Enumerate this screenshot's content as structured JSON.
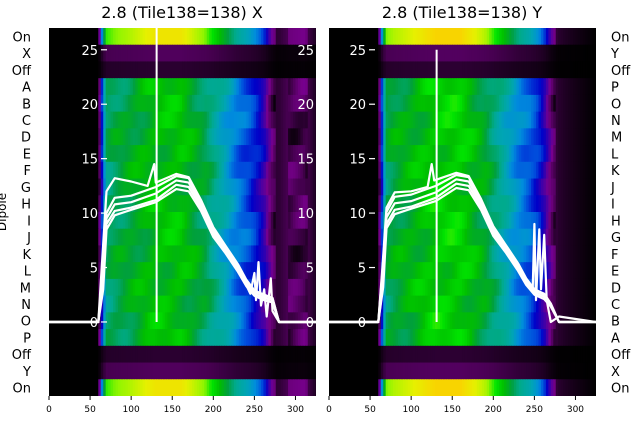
{
  "chart_data": [
    {
      "type": "heatmap",
      "title": "2.8 (Tile138=138) X",
      "ylabel": "Dipole",
      "dipole_rows": [
        "On",
        "X",
        "Off",
        "A",
        "B",
        "C",
        "D",
        "E",
        "F",
        "G",
        "H",
        "I",
        "J",
        "K",
        "L",
        "M",
        "N",
        "O",
        "P",
        "Off",
        "Y",
        "On"
      ],
      "x_ticks": [
        0,
        50,
        100,
        150,
        200,
        250,
        300
      ],
      "xlim": [
        0,
        325
      ],
      "overlay_y_ticks": [
        0,
        5,
        10,
        15,
        20,
        25
      ],
      "overlay_ylim": [
        -6.8,
        27
      ],
      "colormap": "nipy_spectral",
      "background_color": "#1a0018",
      "spectrum_profile": [
        [
          0,
          0
        ],
        [
          60,
          0
        ],
        [
          66,
          0.28
        ],
        [
          70,
          0.42
        ],
        [
          80,
          0.44
        ],
        [
          100,
          0.46
        ],
        [
          130,
          0.5
        ],
        [
          160,
          0.5
        ],
        [
          190,
          0.44
        ],
        [
          210,
          0.36
        ],
        [
          230,
          0.28
        ],
        [
          245,
          0.24
        ],
        [
          250,
          0.22
        ],
        [
          255,
          0.2
        ],
        [
          262,
          0.16
        ],
        [
          270,
          0.08
        ],
        [
          278,
          0.03
        ],
        [
          290,
          0.05
        ],
        [
          310,
          0.06
        ],
        [
          325,
          0.02
        ]
      ],
      "overlay_series": [
        {
          "points": [
            [
              0,
              0
            ],
            [
              60,
              0
            ],
            [
              65,
              3
            ],
            [
              70,
              9
            ],
            [
              80,
              10.2
            ],
            [
              100,
              10.5
            ],
            [
              130,
              11.2
            ],
            [
              155,
              12.6
            ],
            [
              170,
              12.4
            ],
            [
              185,
              10.5
            ],
            [
              200,
              8
            ],
            [
              215,
              6.5
            ],
            [
              230,
              4.8
            ],
            [
              240,
              3.4
            ],
            [
              245,
              2.6
            ],
            [
              250,
              4.5
            ],
            [
              252,
              2
            ],
            [
              255,
              5.5
            ],
            [
              258,
              1.5
            ],
            [
              262,
              3
            ],
            [
              265,
              0.5
            ],
            [
              270,
              4
            ],
            [
              272,
              1
            ],
            [
              280,
              0
            ],
            [
              325,
              0
            ]
          ]
        },
        {
          "points": [
            [
              0,
              0
            ],
            [
              60,
              0
            ],
            [
              65,
              4
            ],
            [
              70,
              9.5
            ],
            [
              80,
              10.8
            ],
            [
              100,
              11
            ],
            [
              130,
              11.8
            ],
            [
              155,
              13
            ],
            [
              170,
              12.8
            ],
            [
              185,
              10.8
            ],
            [
              200,
              8.3
            ],
            [
              215,
              6.7
            ],
            [
              230,
              5
            ],
            [
              240,
              3.6
            ],
            [
              250,
              2.6
            ],
            [
              262,
              2.2
            ],
            [
              272,
              2
            ],
            [
              280,
              0
            ],
            [
              325,
              0
            ]
          ]
        },
        {
          "points": [
            [
              0,
              0
            ],
            [
              60,
              0
            ],
            [
              65,
              4.5
            ],
            [
              70,
              10
            ],
            [
              80,
              11.4
            ],
            [
              100,
              11.6
            ],
            [
              130,
              12.4
            ],
            [
              155,
              13.4
            ],
            [
              170,
              13.2
            ],
            [
              185,
              11.1
            ],
            [
              200,
              8.6
            ],
            [
              215,
              6.9
            ],
            [
              230,
              5.2
            ],
            [
              240,
              3.8
            ],
            [
              250,
              2.8
            ],
            [
              262,
              2.4
            ],
            [
              272,
              2.2
            ],
            [
              280,
              0
            ],
            [
              325,
              0
            ]
          ]
        },
        {
          "points": [
            [
              0,
              0
            ],
            [
              60,
              0
            ],
            [
              65,
              6
            ],
            [
              70,
              12
            ],
            [
              80,
              13.2
            ],
            [
              100,
              12.9
            ],
            [
              120,
              12.5
            ],
            [
              128,
              14.5
            ],
            [
              130,
              12.8
            ],
            [
              155,
              13.6
            ],
            [
              170,
              13.3
            ],
            [
              185,
              11.2
            ],
            [
              200,
              8.7
            ],
            [
              215,
              7
            ],
            [
              230,
              5.3
            ],
            [
              240,
              3.9
            ],
            [
              250,
              2.9
            ],
            [
              262,
              2.5
            ],
            [
              272,
              2.2
            ],
            [
              280,
              0
            ],
            [
              325,
              0
            ]
          ]
        },
        {
          "points": [
            [
              0,
              0
            ],
            [
              60,
              0
            ],
            [
              66,
              3
            ],
            [
              70,
              8.5
            ],
            [
              80,
              9.8
            ],
            [
              100,
              10.3
            ],
            [
              130,
              11
            ],
            [
              155,
              12.2
            ],
            [
              170,
              12
            ],
            [
              185,
              10.2
            ],
            [
              200,
              7.8
            ],
            [
              215,
              6.3
            ],
            [
              230,
              4.6
            ],
            [
              240,
              3.3
            ],
            [
              250,
              2.4
            ],
            [
              262,
              2
            ],
            [
              272,
              1.8
            ],
            [
              280,
              0
            ],
            [
              325,
              0
            ]
          ]
        }
      ],
      "spike": {
        "x": 131,
        "y_top": 27
      }
    },
    {
      "type": "heatmap",
      "title": "2.8 (Tile138=138) Y",
      "dipole_rows": [
        "On",
        "Y",
        "Off",
        "P",
        "O",
        "N",
        "M",
        "L",
        "K",
        "J",
        "I",
        "H",
        "G",
        "F",
        "E",
        "D",
        "C",
        "B",
        "A",
        "Off",
        "X",
        "On"
      ],
      "x_ticks": [
        0,
        50,
        100,
        150,
        200,
        250,
        300
      ],
      "xlim": [
        0,
        325
      ],
      "overlay_y_ticks": [
        0,
        5,
        10,
        15,
        20,
        25
      ],
      "overlay_ylim": [
        -6.8,
        27
      ],
      "colormap": "nipy_spectral",
      "background_color": "#000000",
      "spectrum_profile": [
        [
          0,
          0
        ],
        [
          60,
          0
        ],
        [
          66,
          0.3
        ],
        [
          70,
          0.44
        ],
        [
          80,
          0.46
        ],
        [
          100,
          0.48
        ],
        [
          130,
          0.52
        ],
        [
          160,
          0.52
        ],
        [
          190,
          0.46
        ],
        [
          210,
          0.38
        ],
        [
          230,
          0.3
        ],
        [
          245,
          0.26
        ],
        [
          250,
          0.24
        ],
        [
          255,
          0.22
        ],
        [
          262,
          0.17
        ],
        [
          270,
          0.09
        ],
        [
          278,
          0.03
        ],
        [
          290,
          0.02
        ],
        [
          325,
          0
        ]
      ],
      "overlay_series": [
        {
          "points": [
            [
              0,
              0
            ],
            [
              60,
              0
            ],
            [
              65,
              3
            ],
            [
              70,
              9
            ],
            [
              80,
              10.3
            ],
            [
              100,
              10.6
            ],
            [
              130,
              11.4
            ],
            [
              155,
              12.7
            ],
            [
              170,
              12.5
            ],
            [
              185,
              10.6
            ],
            [
              200,
              8.1
            ],
            [
              215,
              6.6
            ],
            [
              230,
              4.9
            ],
            [
              240,
              3.5
            ],
            [
              248,
              3
            ],
            [
              250,
              9
            ],
            [
              252,
              2
            ],
            [
              256,
              8.5
            ],
            [
              258,
              3
            ],
            [
              262,
              8
            ],
            [
              265,
              2
            ],
            [
              270,
              0
            ],
            [
              280,
              0.5
            ],
            [
              325,
              0
            ]
          ]
        },
        {
          "points": [
            [
              0,
              0
            ],
            [
              60,
              0
            ],
            [
              65,
              4
            ],
            [
              70,
              9.6
            ],
            [
              80,
              10.9
            ],
            [
              100,
              11.1
            ],
            [
              130,
              11.9
            ],
            [
              155,
              13.1
            ],
            [
              170,
              12.9
            ],
            [
              185,
              10.9
            ],
            [
              200,
              8.4
            ],
            [
              215,
              6.8
            ],
            [
              230,
              5.1
            ],
            [
              240,
              3.7
            ],
            [
              250,
              2.7
            ],
            [
              262,
              2.3
            ],
            [
              270,
              1.5
            ],
            [
              280,
              0
            ],
            [
              325,
              0
            ]
          ]
        },
        {
          "points": [
            [
              0,
              0
            ],
            [
              60,
              0
            ],
            [
              65,
              4.6
            ],
            [
              70,
              10.1
            ],
            [
              80,
              11.5
            ],
            [
              100,
              11.7
            ],
            [
              130,
              12.5
            ],
            [
              155,
              13.5
            ],
            [
              170,
              13.3
            ],
            [
              185,
              11.2
            ],
            [
              200,
              8.7
            ],
            [
              215,
              7
            ],
            [
              230,
              5.3
            ],
            [
              240,
              3.9
            ],
            [
              250,
              2.9
            ],
            [
              262,
              2.5
            ],
            [
              270,
              1.6
            ],
            [
              280,
              0
            ],
            [
              325,
              0
            ]
          ]
        },
        {
          "points": [
            [
              0,
              0
            ],
            [
              60,
              0
            ],
            [
              65,
              5
            ],
            [
              70,
              10.5
            ],
            [
              80,
              11.9
            ],
            [
              100,
              12
            ],
            [
              120,
              12.4
            ],
            [
              125,
              14.5
            ],
            [
              128,
              13
            ],
            [
              155,
              13.7
            ],
            [
              170,
              13.4
            ],
            [
              185,
              11.3
            ],
            [
              200,
              8.8
            ],
            [
              215,
              7.1
            ],
            [
              230,
              5.4
            ],
            [
              240,
              4
            ],
            [
              250,
              3
            ],
            [
              262,
              2.6
            ],
            [
              270,
              1.7
            ],
            [
              280,
              0
            ],
            [
              325,
              0
            ]
          ]
        },
        {
          "points": [
            [
              0,
              0
            ],
            [
              60,
              0
            ],
            [
              66,
              3.2
            ],
            [
              70,
              8.6
            ],
            [
              80,
              9.9
            ],
            [
              100,
              10.4
            ],
            [
              130,
              11.1
            ],
            [
              155,
              12.3
            ],
            [
              170,
              12.1
            ],
            [
              185,
              10.3
            ],
            [
              200,
              7.9
            ],
            [
              215,
              6.4
            ],
            [
              230,
              4.7
            ],
            [
              240,
              3.4
            ],
            [
              250,
              2.5
            ],
            [
              262,
              2.1
            ],
            [
              270,
              1.4
            ],
            [
              280,
              0
            ],
            [
              325,
              0
            ]
          ]
        }
      ],
      "spike": {
        "x": 131,
        "y_top": 25
      }
    }
  ]
}
